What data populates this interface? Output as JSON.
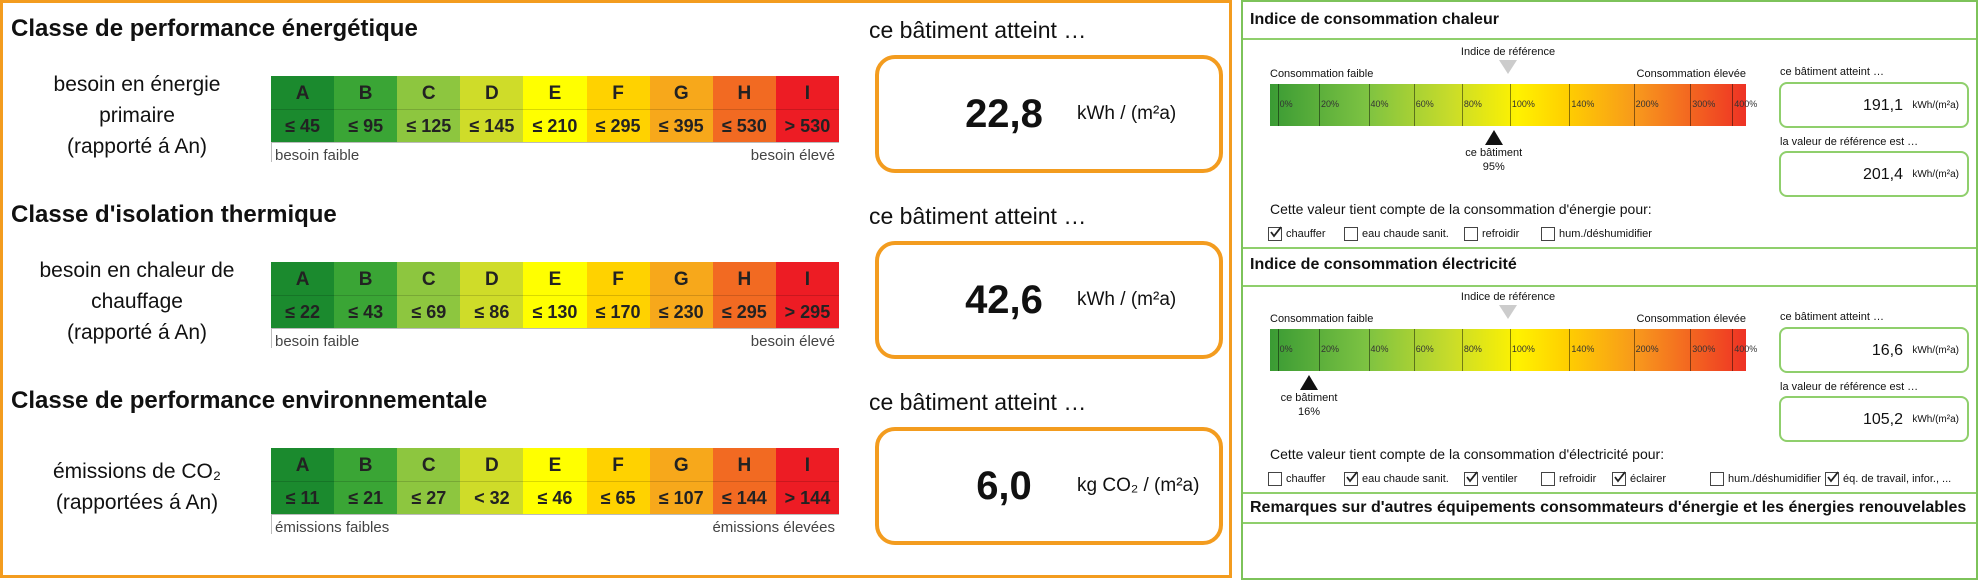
{
  "left": {
    "sections": [
      {
        "title": "Classe de performance énergétique",
        "label": [
          "besoin en énergie",
          "primaire",
          "(rapporté á An)"
        ],
        "grades": [
          "A",
          "B",
          "C",
          "D",
          "E",
          "F",
          "G",
          "H",
          "I"
        ],
        "limits": [
          "≤ 45",
          "≤ 95",
          "≤ 125",
          "≤ 145",
          "≤ 210",
          "≤ 295",
          "≤ 395",
          "≤ 530",
          "> 530"
        ],
        "low": "besoin faible",
        "high": "besoin élevé",
        "reach": "ce bâtiment atteint …",
        "value": "22,8",
        "unit": "kWh / (m²a)"
      },
      {
        "title": "Classe d'isolation thermique",
        "label": [
          "besoin en chaleur de",
          "chauffage",
          "(rapporté á An)"
        ],
        "grades": [
          "A",
          "B",
          "C",
          "D",
          "E",
          "F",
          "G",
          "H",
          "I"
        ],
        "limits": [
          "≤ 22",
          "≤ 43",
          "≤ 69",
          "≤ 86",
          "≤ 130",
          "≤ 170",
          "≤ 230",
          "≤ 295",
          "> 295"
        ],
        "low": "besoin faible",
        "high": "besoin élevé",
        "reach": "ce bâtiment atteint …",
        "value": "42,6",
        "unit": "kWh / (m²a)"
      },
      {
        "title": "Classe de performance environnementale",
        "label": [
          "émissions de CO₂",
          "(rapportées á An)"
        ],
        "grades": [
          "A",
          "B",
          "C",
          "D",
          "E",
          "F",
          "G",
          "H",
          "I"
        ],
        "limits": [
          "≤ 11",
          "≤ 21",
          "≤ 27",
          "< 32",
          "≤ 46",
          "≤ 65",
          "≤ 107",
          "≤ 144",
          "> 144"
        ],
        "low": "émissions faibles",
        "high": "émissions élevées",
        "reach": "ce bâtiment atteint …",
        "value": "6,0",
        "unit": "kg CO₂ / (m²a)"
      }
    ]
  },
  "right": {
    "sections": [
      {
        "title": "Indice de consommation chaleur",
        "low": "Consommation faible",
        "reference": "Indice de référence",
        "high": "Consommation élevée",
        "ticks": [
          "0%",
          "20%",
          "40%",
          "60%",
          "80%",
          "100%",
          "140%",
          "200%",
          "300%",
          "400%"
        ],
        "marker": {
          "label": "ce bâtiment",
          "value": "95%"
        },
        "reach": "ce bâtiment atteint …",
        "value": "191,1",
        "unit": "kWh/(m²a)",
        "ref_label": "la valeur de référence est …",
        "ref_value": "201,4",
        "ref_unit": "kWh/(m²a)",
        "note": "Cette valeur tient compte de la consommation d'énergie pour:",
        "uses": [
          {
            "label": "chauffer",
            "checked": true
          },
          {
            "label": "eau chaude sanit.",
            "checked": false
          },
          {
            "label": "refroidir",
            "checked": false
          },
          {
            "label": "hum./déshumidifier",
            "checked": false
          }
        ]
      },
      {
        "title": "Indice de consommation électricité",
        "low": "Consommation faible",
        "reference": "Indice de référence",
        "high": "Consommation élevée",
        "ticks": [
          "0%",
          "20%",
          "40%",
          "60%",
          "80%",
          "100%",
          "140%",
          "200%",
          "300%",
          "400%"
        ],
        "marker": {
          "label": "ce bâtiment",
          "value": "16%"
        },
        "reach": "ce bâtiment atteint …",
        "value": "16,6",
        "unit": "kWh/(m²a)",
        "ref_label": "la valeur de référence est …",
        "ref_value": "105,2",
        "ref_unit": "kWh/(m²a)",
        "note": "Cette valeur tient compte de la consommation d'électricité pour:",
        "uses": [
          {
            "label": "chauffer",
            "checked": false
          },
          {
            "label": "eau chaude sanit.",
            "checked": true
          },
          {
            "label": "ventiler",
            "checked": true
          },
          {
            "label": "refroidir",
            "checked": false
          },
          {
            "label": "éclairer",
            "checked": true
          },
          {
            "label": "hum./déshumidifier",
            "checked": false
          },
          {
            "label": "éq. de travail, infor., ...",
            "checked": true
          }
        ]
      }
    ],
    "remarks": {
      "title": "Remarques sur d'autres équipements consommateurs d'énergie et les énergies renouvelables"
    }
  }
}
